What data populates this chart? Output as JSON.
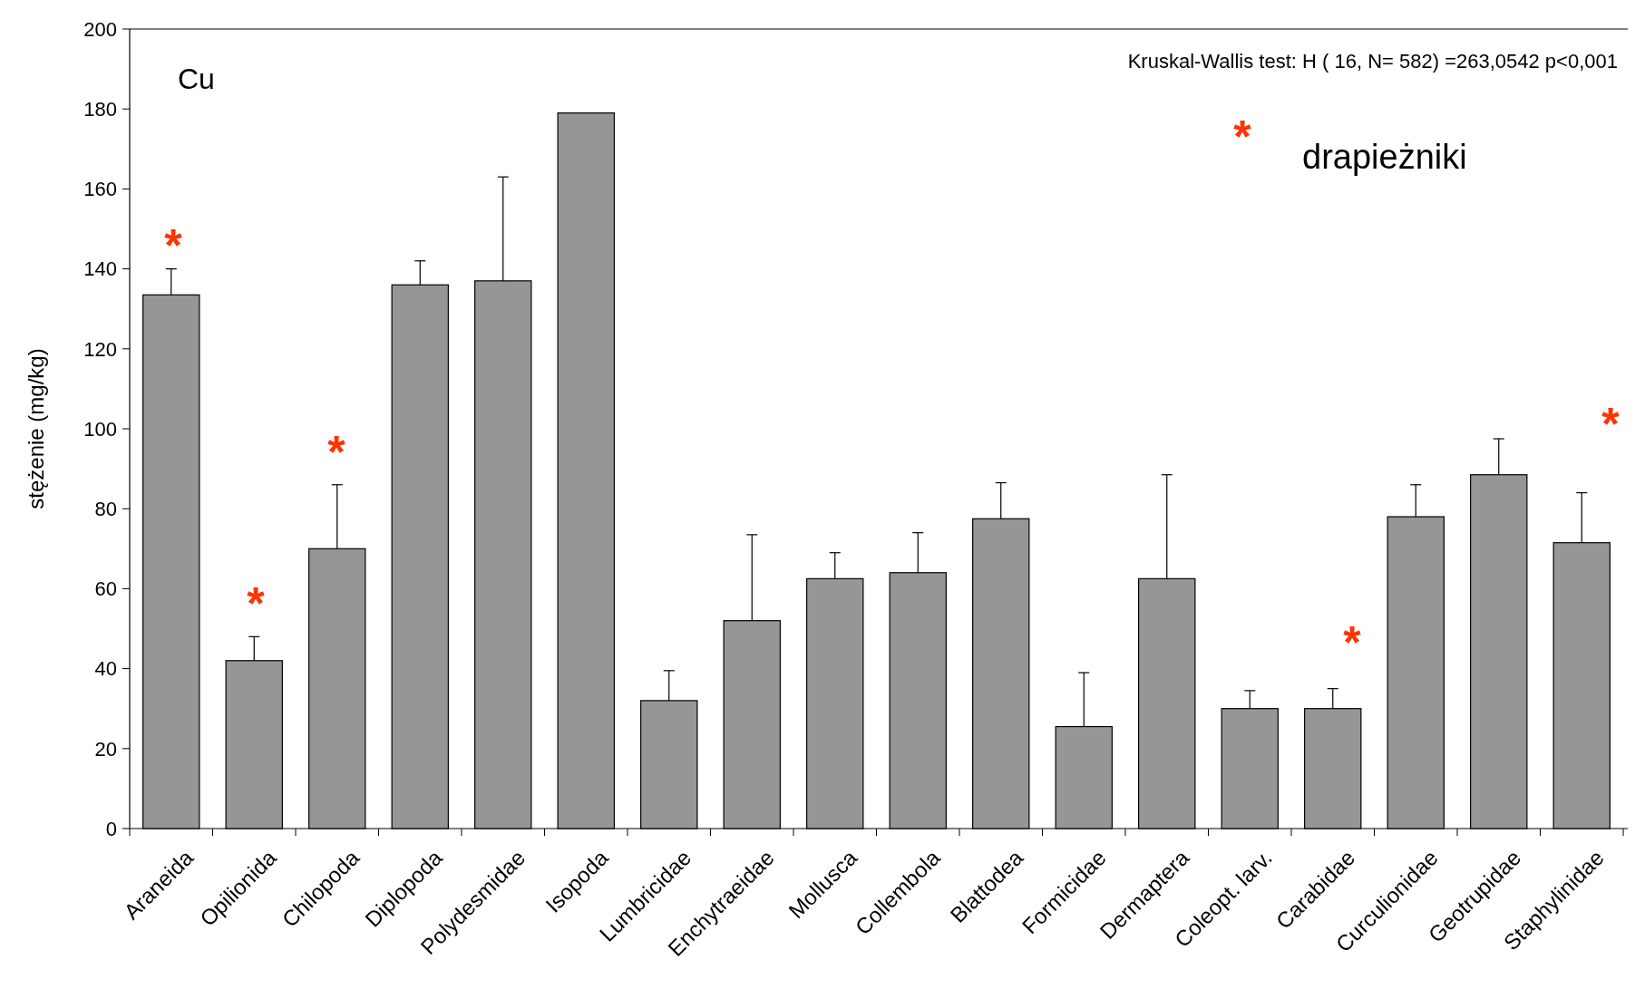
{
  "chart_data": {
    "type": "bar",
    "ylabel": "stężenie (mg/kg)",
    "categories": [
      "Araneida",
      "Opilionida",
      "Chilopoda",
      "Diplopoda",
      "Polydesmidae",
      "Isopoda",
      "Lumbricidae",
      "Enchytraeidae",
      "Mollusca",
      "Collembola",
      "Blattodea",
      "Formicidae",
      "Dermaptera",
      "Coleopt. larv.",
      "Carabidae",
      "Curculionidae",
      "Geotrupidae",
      "Staphylinidae"
    ],
    "values": [
      133.5,
      42,
      70,
      136,
      137,
      179,
      32,
      52,
      62.5,
      64,
      77.5,
      25.5,
      62.5,
      30,
      30,
      78,
      88.5,
      71.5
    ],
    "errors": [
      [
        133.5,
        140
      ],
      [
        42,
        48
      ],
      [
        70,
        86
      ],
      [
        136,
        142
      ],
      [
        137,
        163
      ],
      null,
      [
        32,
        39.5
      ],
      [
        52,
        73.5
      ],
      [
        62.5,
        69
      ],
      [
        64,
        74
      ],
      [
        77.5,
        86.5
      ],
      [
        25.5,
        39
      ],
      [
        62.5,
        88.5
      ],
      [
        30,
        34.5
      ],
      [
        30,
        35
      ],
      [
        78,
        86
      ],
      [
        88.5,
        97.5
      ],
      [
        71.5,
        84
      ]
    ],
    "color": "#969696",
    "ylim": [
      0,
      200
    ],
    "yticks": [
      0,
      20,
      40,
      60,
      80,
      100,
      120,
      140,
      160,
      180,
      200
    ],
    "annotations": [
      "Cu",
      "Kruskal-Wallis test: H ( 16, N= 582) =263,0542 p<0,001",
      "*",
      "drapieżniki",
      "*",
      "*",
      "*",
      "*",
      "*"
    ]
  }
}
